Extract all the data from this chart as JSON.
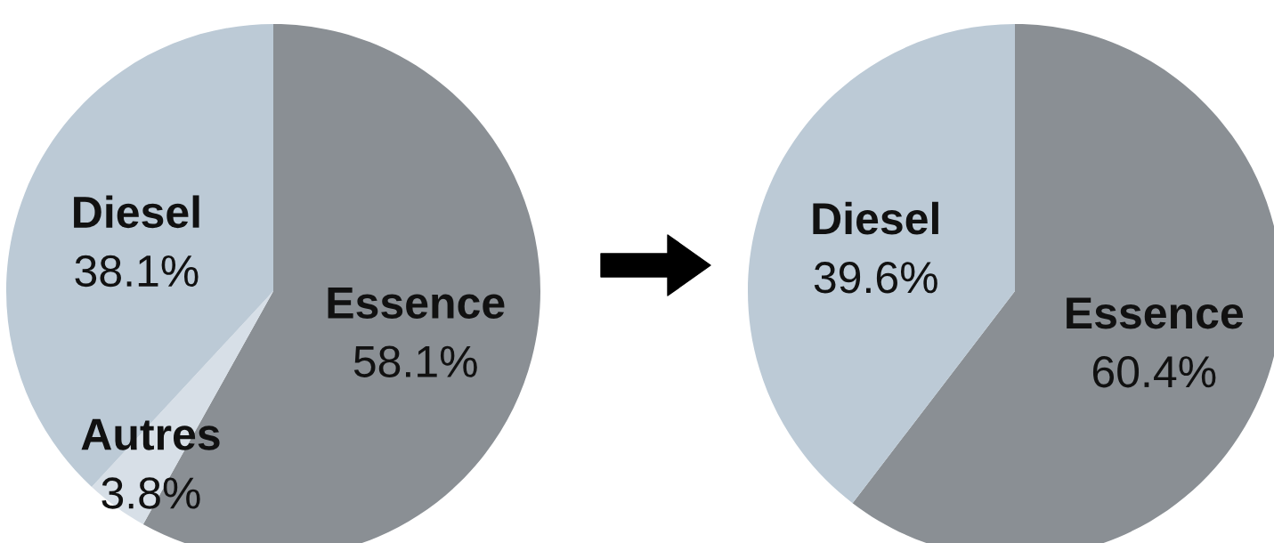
{
  "chart_data": [
    {
      "type": "pie",
      "categories": [
        "Essence",
        "Autres",
        "Diesel"
      ],
      "values": [
        58.1,
        3.8,
        38.1
      ],
      "colors": [
        "#8a8f94",
        "#d7dfe7",
        "#bccad6"
      ],
      "value_labels": [
        "58.1%",
        "3.8%",
        "38.1%"
      ]
    },
    {
      "type": "pie",
      "categories": [
        "Essence",
        "Diesel"
      ],
      "values": [
        60.4,
        39.6
      ],
      "colors": [
        "#8a8f94",
        "#bccad6"
      ],
      "value_labels": [
        "60.4%",
        "39.6%"
      ]
    }
  ]
}
